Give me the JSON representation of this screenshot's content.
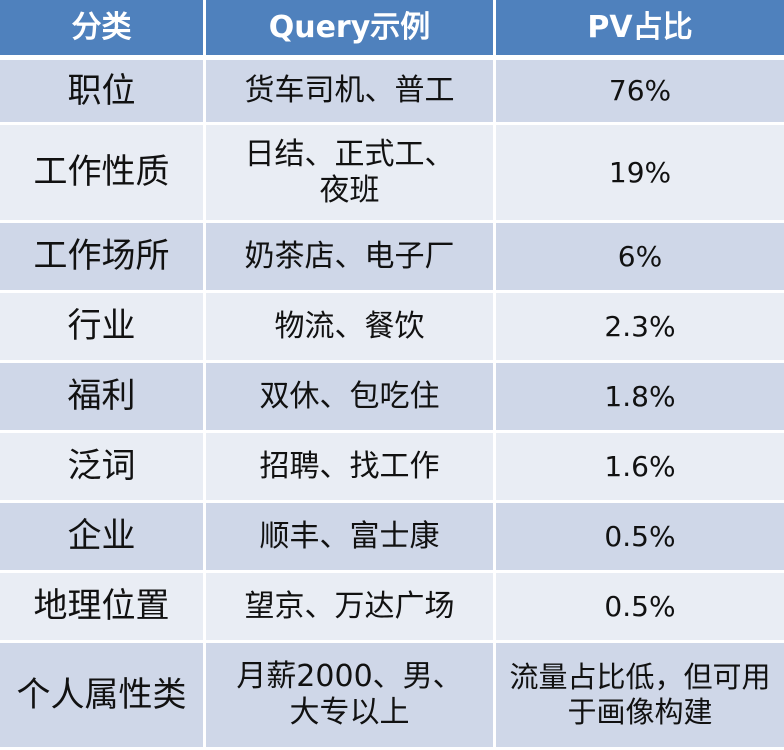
{
  "headers": [
    "分类",
    "Query示例",
    "PV占比"
  ],
  "rows": [
    {
      "category": "职位",
      "query": "货车司机、普工",
      "pv": "76%"
    },
    {
      "category": "工作性质",
      "query": "日结、正式工、夜班",
      "pv": "19%"
    },
    {
      "category": "工作场所",
      "query": "奶茶店、电子厂",
      "pv": "6%"
    },
    {
      "category": "行业",
      "query": "物流、餐饮",
      "pv": "2.3%"
    },
    {
      "category": "福利",
      "query": "双休、包吃住",
      "pv": "1.8%"
    },
    {
      "category": "泛词",
      "query": "招聘、找工作",
      "pv": "1.6%"
    },
    {
      "category": "企业",
      "query": "顺丰、富士康",
      "pv": "0.5%"
    },
    {
      "category": "地理位置",
      "query": "望京、万达广场",
      "pv": "0.5%"
    },
    {
      "category": "个人属性类",
      "query": "月薪2000、男、大专以上",
      "pv": "流量占比低，但可用于画像构建"
    }
  ],
  "colors": {
    "header_bg": "#4f81bd",
    "row_dark": "#cfd7e8",
    "row_light": "#e9edf4"
  }
}
